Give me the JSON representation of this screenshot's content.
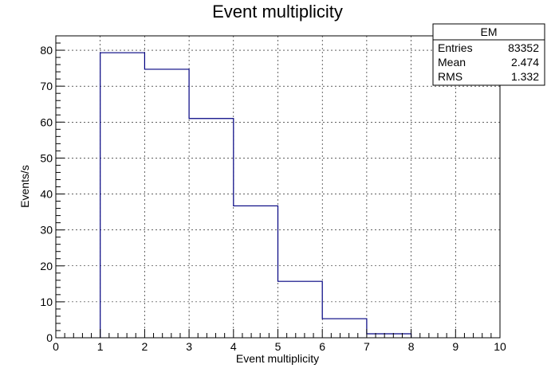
{
  "chart_data": {
    "type": "bar",
    "title": "Event multiplicity",
    "xlabel": "Event multiplicity",
    "ylabel": "Events/s",
    "xlim": [
      0,
      10
    ],
    "ylim": [
      0,
      84
    ],
    "grid": true,
    "x_ticks": [
      0,
      1,
      2,
      3,
      4,
      5,
      6,
      7,
      8,
      9,
      10
    ],
    "y_ticks": [
      0,
      10,
      20,
      30,
      40,
      50,
      60,
      70,
      80
    ],
    "bins": [
      {
        "low": 1,
        "high": 2,
        "value": 79.3
      },
      {
        "low": 2,
        "high": 3,
        "value": 74.7
      },
      {
        "low": 3,
        "high": 4,
        "value": 61.0
      },
      {
        "low": 4,
        "high": 5,
        "value": 36.7
      },
      {
        "low": 5,
        "high": 6,
        "value": 15.7
      },
      {
        "low": 6,
        "high": 7,
        "value": 5.3
      },
      {
        "low": 7,
        "high": 8,
        "value": 1.1
      }
    ],
    "series_color": "#000080",
    "stats_box": {
      "name": "EM",
      "rows": [
        {
          "label": "Entries",
          "value": "83352"
        },
        {
          "label": "Mean",
          "value": "2.474"
        },
        {
          "label": "RMS",
          "value": "1.332"
        }
      ]
    }
  }
}
